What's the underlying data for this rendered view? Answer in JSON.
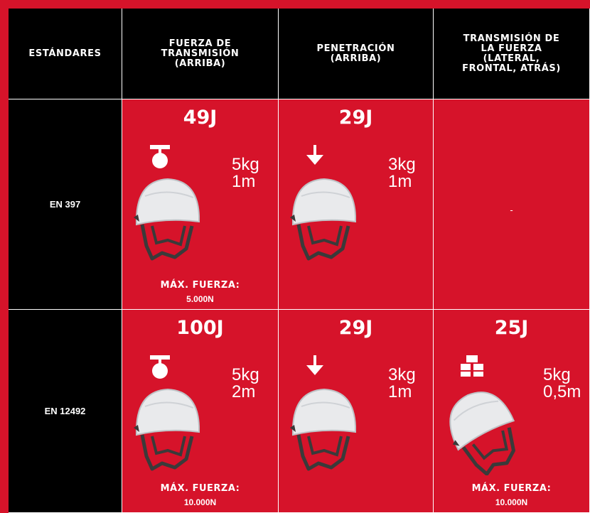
{
  "header": {
    "columns": [
      [
        "ESTÁNDARES"
      ],
      [
        "FUERZA DE",
        "TRANSMISIÓN",
        "(ARRIBA)"
      ],
      [
        "PENETRACIÓN",
        "(ARRIBA)"
      ],
      [
        "TRANSMISIÓN DE",
        "LA FUERZA",
        "(LATERAL,",
        "FRONTAL, ATRÁS)"
      ]
    ]
  },
  "rows": [
    {
      "standard": "EN 397",
      "cells": [
        {
          "icon": "weight",
          "energy": "49J",
          "weight": "5kg",
          "height": "1m",
          "max_label": "MÁX. FUERZA:",
          "max_value": "5.000N"
        },
        {
          "icon": "arrow",
          "energy": "29J",
          "weight": "3kg",
          "height": "1m"
        },
        {
          "dash": "-"
        }
      ]
    },
    {
      "standard": "EN 12492",
      "cells": [
        {
          "icon": "weight",
          "energy": "100J",
          "weight": "5kg",
          "height": "2m",
          "max_label": "MÁX. FUERZA:",
          "max_value": "10.000N"
        },
        {
          "icon": "arrow",
          "energy": "29J",
          "weight": "3kg",
          "height": "1m"
        },
        {
          "icon": "striker",
          "energy": "25J",
          "weight": "5kg",
          "height": "0,5m",
          "max_label": "MÁX. FUERZA:",
          "max_value": "10.000N",
          "tilted": true
        }
      ]
    }
  ]
}
